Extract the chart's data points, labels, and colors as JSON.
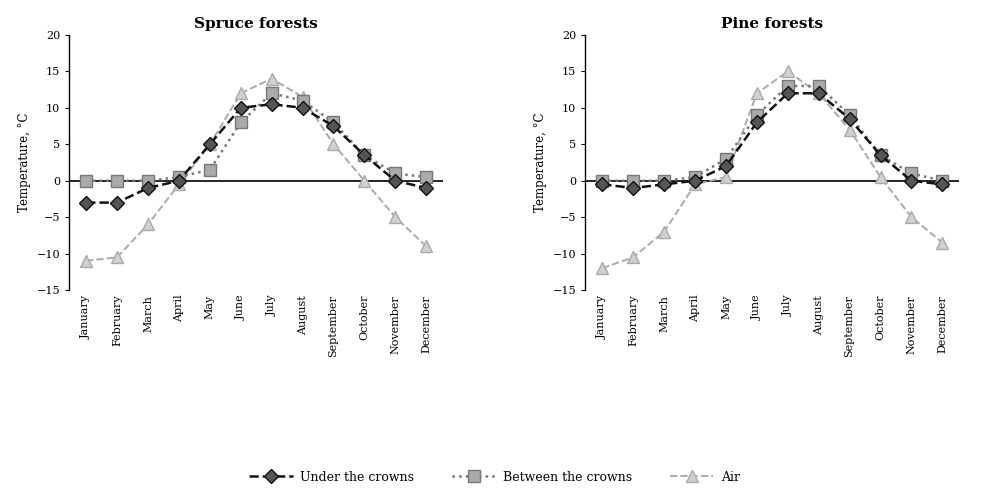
{
  "months": [
    "January",
    "February",
    "March",
    "April",
    "May",
    "June",
    "July",
    "August",
    "September",
    "October",
    "November",
    "December"
  ],
  "spruce": {
    "under_crowns": [
      -3,
      -3,
      -1,
      0,
      5,
      10,
      10.5,
      10,
      7.5,
      3.5,
      0,
      -1
    ],
    "between_crowns": [
      0,
      0,
      0,
      0.5,
      1.5,
      8,
      12,
      11,
      8,
      3.5,
      1,
      0.5
    ],
    "air": [
      -11,
      -10.5,
      -6,
      -0.5,
      5,
      12,
      14,
      11.5,
      5,
      0,
      -5,
      -9
    ]
  },
  "pine": {
    "under_crowns": [
      -0.5,
      -1,
      -0.5,
      0,
      2,
      8,
      12,
      12,
      8.5,
      3.5,
      0,
      -0.5
    ],
    "between_crowns": [
      0,
      0,
      0,
      0.5,
      3,
      9,
      13,
      13,
      9,
      3.5,
      1,
      0
    ],
    "air": [
      -12,
      -10.5,
      -7,
      -0.5,
      0.5,
      12,
      15,
      12,
      7,
      0.5,
      -5,
      -8.5
    ]
  },
  "title_spruce": "Spruce forests",
  "title_pine": "Pine forests",
  "ylabel": "Temperature, °C",
  "ylim": [
    -15,
    20
  ],
  "yticks": [
    -15,
    -10,
    -5,
    0,
    5,
    10,
    15,
    20
  ],
  "legend_labels": [
    "Under the crowns",
    "Between the crowns",
    "Air"
  ]
}
